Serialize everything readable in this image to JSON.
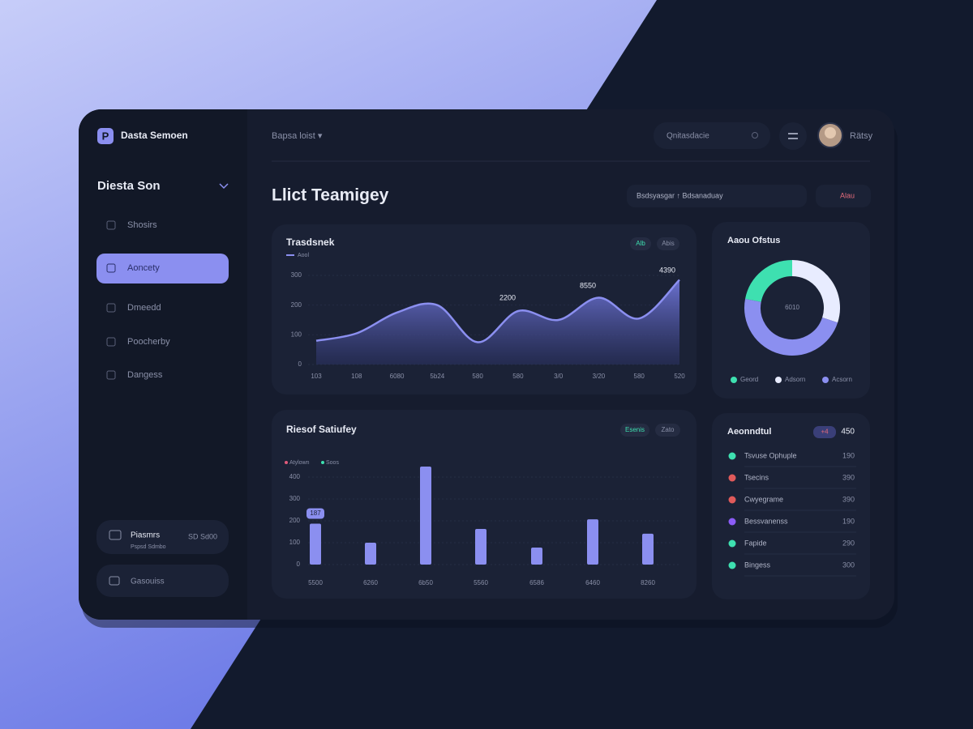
{
  "sidebar": {
    "logo": "P",
    "brand": "Dasta Semoen",
    "workspace": "Diesta Son",
    "nav": [
      "Shosirs",
      "Aoncety",
      "Dmeedd",
      "Poocherby",
      "Dangess"
    ],
    "promo": {
      "title": "Piasmrs",
      "subtitle": "Pspsd Sdmbo",
      "badge": "SD Sd00"
    },
    "footer": "Gasouiss"
  },
  "header": {
    "breadcrumb": "Bapsa loist ▾",
    "search": "Qnitasdacie",
    "user": "Rätsy"
  },
  "page": {
    "title": "Llict Teamigey",
    "filter": "Bsdsyasgar ↑ Bdsanaduay",
    "action": "Alau"
  },
  "chart_data": [
    {
      "type": "area",
      "title": "Trasdsnek",
      "toggles": [
        "Alb",
        "Abis"
      ],
      "categories": [
        "103",
        "108",
        "6080",
        "5b24",
        "580",
        "580",
        "3/0",
        "3/20",
        "580",
        "520"
      ],
      "series": [
        {
          "name": "Aool",
          "color": "#8b8ff0",
          "values": [
            80,
            105,
            175,
            200,
            75,
            180,
            150,
            225,
            155,
            285
          ]
        }
      ],
      "annotations": [
        "2200",
        "8550",
        "4390"
      ],
      "ylim": [
        0,
        300
      ],
      "yticks": [
        0,
        100,
        200,
        300
      ],
      "grid": true
    },
    {
      "type": "pie",
      "title": "Aaou Ofstus",
      "center_label": "6010",
      "series": [
        {
          "name": "Geord",
          "color": "#3ee0b0",
          "value": 22
        },
        {
          "name": "Adsorn",
          "color": "#e8ecff",
          "value": 30
        },
        {
          "name": "Acsorn",
          "color": "#8b8ff0",
          "value": 48
        }
      ]
    },
    {
      "type": "bar",
      "title": "Riesof Satiufey",
      "toggles": [
        "Esenis",
        "Zato"
      ],
      "legend": [
        {
          "name": "Atylown",
          "color": "#e05a7a"
        },
        {
          "name": "Soos",
          "color": "#3ee0b0"
        }
      ],
      "categories": [
        "5500",
        "6260",
        "6b50",
        "5560",
        "6586",
        "6460",
        "8260"
      ],
      "values": [
        187,
        100,
        448,
        163,
        78,
        207,
        141
      ],
      "color": "#8b8ff0",
      "ylim": [
        0,
        450
      ],
      "yticks": [
        0,
        100,
        200,
        300,
        400
      ],
      "grid": true
    }
  ],
  "activity": {
    "title": "Aeonndtul",
    "badge": "+4",
    "total": 450,
    "items": [
      {
        "name": "Tsvuse Ophuple",
        "value": 190,
        "color": "#3ee0b0"
      },
      {
        "name": "Tsecins",
        "value": 390,
        "color": "#e05a5a"
      },
      {
        "name": "Cwyegrame",
        "value": 390,
        "color": "#e05a5a"
      },
      {
        "name": "Bessvanenss",
        "value": 190,
        "color": "#8b5cf6"
      },
      {
        "name": "Fapide",
        "value": 290,
        "color": "#3ee0b0"
      },
      {
        "name": "Bingess",
        "value": 300,
        "color": "#3ee0b0"
      }
    ]
  }
}
